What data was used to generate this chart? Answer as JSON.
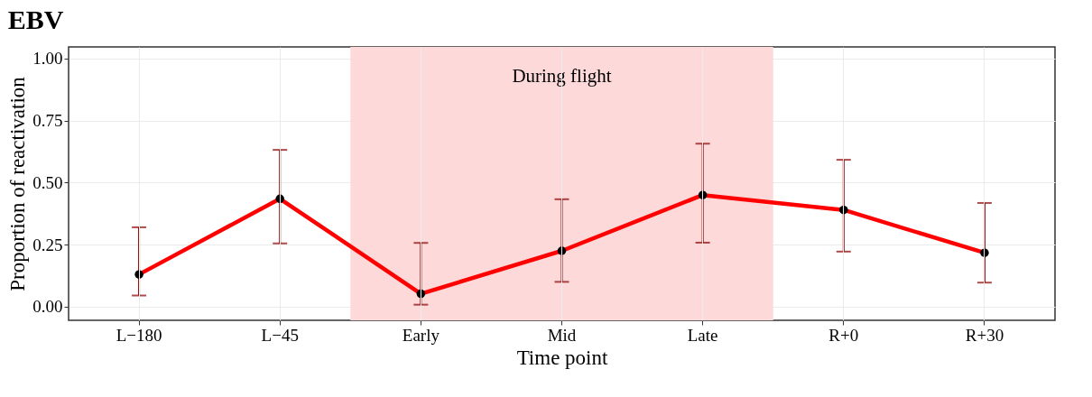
{
  "chart_data": {
    "type": "line",
    "title": "EBV",
    "xlabel": "Time point",
    "ylabel": "Proportion of reactivation",
    "categories": [
      "L−180",
      "L−45",
      "Early",
      "Mid",
      "Late",
      "R+0",
      "R+30"
    ],
    "series": [
      {
        "color": "#ff0000",
        "values": [
          0.13,
          0.435,
          0.052,
          0.225,
          0.45,
          0.39,
          0.217
        ],
        "errors": [
          [
            0.045,
            0.32
          ],
          [
            0.255,
            0.632
          ],
          [
            0.008,
            0.257
          ],
          [
            0.1,
            0.433
          ],
          [
            0.258,
            0.657
          ],
          [
            0.222,
            0.592
          ],
          [
            0.097,
            0.418
          ]
        ]
      }
    ],
    "ylim": [
      -0.055,
      1.047
    ],
    "yticks": [
      {
        "value": 0,
        "label": "0.00"
      },
      {
        "value": 0.25,
        "label": "0.25"
      },
      {
        "value": 0.5,
        "label": "0.50"
      },
      {
        "value": 0.75,
        "label": "0.75"
      },
      {
        "value": 1,
        "label": "1.00"
      }
    ],
    "bands": [
      {
        "axis": "x",
        "from": "Early",
        "to": "Late",
        "label": "During flight",
        "color": "#fdd9d9"
      }
    ],
    "grid": true,
    "marker": "circle",
    "line_style": "solid"
  }
}
